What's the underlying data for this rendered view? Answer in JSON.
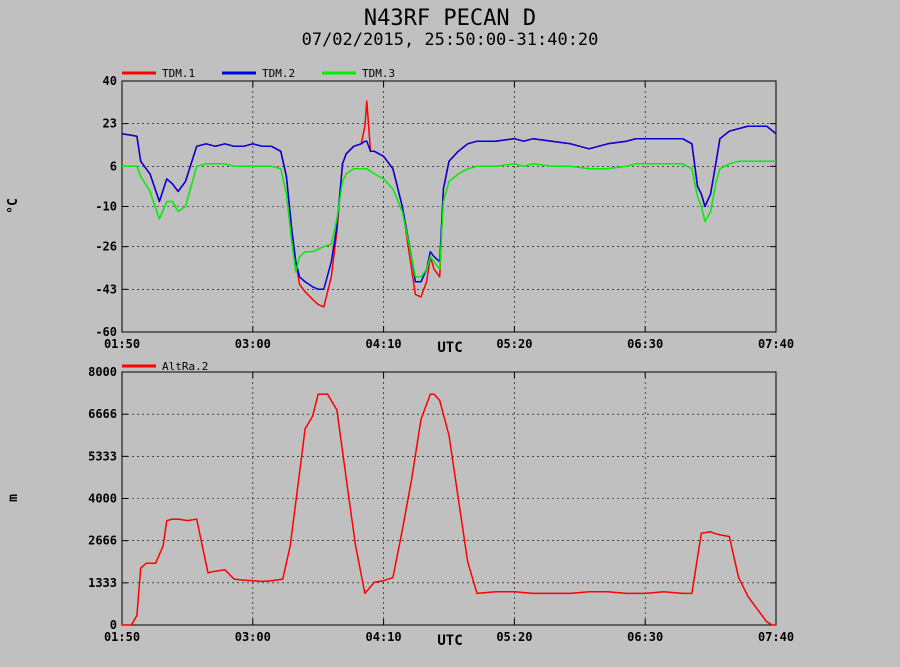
{
  "title": "N43RF PECAN D",
  "subtitle": "07/02/2015, 25:50:00-31:40:20",
  "chart_data": [
    {
      "type": "line",
      "ylabel": "°C",
      "xlabel": "UTC",
      "ylim": [
        -60,
        40
      ],
      "yticks": [
        "40",
        "23",
        "6",
        "-10",
        "-26",
        "-43",
        "-60"
      ],
      "ytick_values": [
        40,
        23,
        6,
        -10,
        -26,
        -43,
        -60
      ],
      "xlim": [
        0,
        350
      ],
      "xticks": [
        "01:50",
        "03:00",
        "04:10",
        "05:20",
        "06:30",
        "07:40"
      ],
      "xtick_values": [
        0,
        70,
        140,
        210,
        280,
        350
      ],
      "grid": true,
      "legend": "top-left",
      "series": [
        {
          "name": "TDM.1",
          "color": "#ff0000",
          "x": [
            0,
            8,
            10,
            15,
            20,
            24,
            27,
            30,
            34,
            40,
            45,
            50,
            55,
            60,
            65,
            70,
            75,
            80,
            85,
            88,
            91,
            93,
            95,
            98,
            102,
            105,
            108,
            112,
            115,
            118,
            120,
            124,
            128,
            130,
            131,
            133,
            135,
            140,
            145,
            150,
            155,
            157,
            160,
            163,
            165,
            167,
            170,
            172,
            175,
            180,
            185,
            190,
            200,
            210,
            215,
            220,
            230,
            240,
            250,
            260,
            270,
            275,
            280,
            290,
            300,
            305,
            308,
            310,
            312,
            315,
            318,
            320,
            325,
            330,
            335,
            340,
            345,
            350
          ],
          "y": [
            19,
            18,
            8,
            3,
            -8,
            1,
            -1,
            -4,
            0,
            14,
            15,
            14,
            15,
            14,
            14,
            15,
            14,
            14,
            12,
            2,
            -20,
            -32,
            -41,
            -44,
            -47,
            -49,
            -50,
            -38,
            -20,
            7,
            11,
            14,
            15,
            22,
            32,
            12,
            12,
            10,
            5,
            -10,
            -35,
            -45,
            -46,
            -40,
            -30,
            -35,
            -38,
            -3,
            8,
            12,
            15,
            16,
            16,
            17,
            16,
            17,
            16,
            15,
            13,
            15,
            16,
            17,
            17,
            17,
            17,
            15,
            -2,
            -5,
            -10,
            -5,
            8,
            17,
            20,
            21,
            22,
            22,
            22,
            19
          ]
        },
        {
          "name": "TDM.2",
          "color": "#0000dd",
          "x": [
            0,
            8,
            10,
            15,
            20,
            24,
            27,
            30,
            34,
            40,
            45,
            50,
            55,
            60,
            65,
            70,
            75,
            80,
            85,
            88,
            91,
            93,
            95,
            98,
            102,
            105,
            108,
            112,
            115,
            118,
            120,
            124,
            128,
            130,
            131,
            133,
            135,
            140,
            145,
            150,
            155,
            157,
            160,
            163,
            165,
            167,
            170,
            172,
            175,
            180,
            185,
            190,
            200,
            210,
            215,
            220,
            230,
            240,
            250,
            260,
            270,
            275,
            280,
            290,
            300,
            305,
            308,
            310,
            312,
            315,
            318,
            320,
            325,
            330,
            335,
            340,
            345,
            350
          ],
          "y": [
            19,
            18,
            8,
            3,
            -8,
            1,
            -1,
            -4,
            0,
            14,
            15,
            14,
            15,
            14,
            14,
            15,
            14,
            14,
            12,
            2,
            -20,
            -32,
            -38,
            -40,
            -42,
            -43,
            -43,
            -32,
            -18,
            7,
            11,
            14,
            15,
            16,
            16,
            12,
            12,
            10,
            5,
            -10,
            -30,
            -40,
            -40,
            -35,
            -28,
            -30,
            -32,
            -3,
            8,
            12,
            15,
            16,
            16,
            17,
            16,
            17,
            16,
            15,
            13,
            15,
            16,
            17,
            17,
            17,
            17,
            15,
            -2,
            -5,
            -10,
            -5,
            8,
            17,
            20,
            21,
            22,
            22,
            22,
            19
          ]
        },
        {
          "name": "TDM.3",
          "color": "#00ee00",
          "x": [
            0,
            8,
            10,
            15,
            20,
            24,
            27,
            30,
            34,
            40,
            45,
            50,
            55,
            60,
            65,
            70,
            75,
            80,
            85,
            88,
            91,
            93,
            95,
            98,
            102,
            105,
            108,
            112,
            115,
            118,
            120,
            124,
            128,
            130,
            131,
            133,
            135,
            140,
            145,
            150,
            155,
            157,
            160,
            163,
            165,
            167,
            170,
            172,
            175,
            180,
            185,
            190,
            200,
            210,
            215,
            220,
            230,
            240,
            250,
            260,
            270,
            275,
            280,
            290,
            300,
            305,
            308,
            310,
            312,
            315,
            318,
            320,
            325,
            330,
            335,
            340,
            345,
            350
          ],
          "y": [
            6,
            6,
            2,
            -4,
            -15,
            -8,
            -8,
            -12,
            -10,
            6,
            7,
            7,
            7,
            6,
            6,
            6,
            6,
            6,
            5,
            -5,
            -25,
            -36,
            -30,
            -28,
            -28,
            -27,
            -26,
            -25,
            -15,
            0,
            3,
            5,
            5,
            5,
            5,
            4,
            3,
            1,
            -3,
            -12,
            -30,
            -38,
            -38,
            -35,
            -30,
            -32,
            -35,
            -8,
            0,
            3,
            5,
            6,
            6,
            7,
            6,
            7,
            6,
            6,
            5,
            5,
            6,
            7,
            7,
            7,
            7,
            5,
            -6,
            -10,
            -16,
            -12,
            0,
            5,
            7,
            8,
            8,
            8,
            8,
            8
          ]
        }
      ]
    },
    {
      "type": "line",
      "ylabel": "m",
      "xlabel": "UTC",
      "ylim": [
        0,
        8000
      ],
      "yticks": [
        "8000",
        "6666",
        "5333",
        "4000",
        "2666",
        "1333",
        "0"
      ],
      "ytick_values": [
        8000,
        6666,
        5333,
        4000,
        2666,
        1333,
        0
      ],
      "xlim": [
        0,
        350
      ],
      "xticks": [
        "01:50",
        "03:00",
        "04:10",
        "05:20",
        "06:30",
        "07:40"
      ],
      "xtick_values": [
        0,
        70,
        140,
        210,
        280,
        350
      ],
      "grid": true,
      "legend": "top-left",
      "series": [
        {
          "name": "AltRa.2",
          "color": "#ff0000",
          "x": [
            0,
            5,
            8,
            10,
            13,
            18,
            22,
            24,
            27,
            30,
            35,
            40,
            43,
            46,
            50,
            55,
            60,
            65,
            70,
            75,
            80,
            86,
            90,
            95,
            98,
            102,
            105,
            110,
            115,
            118,
            121,
            125,
            130,
            135,
            140,
            145,
            150,
            155,
            160,
            165,
            167,
            170,
            175,
            180,
            185,
            190,
            200,
            210,
            220,
            230,
            240,
            250,
            260,
            270,
            280,
            290,
            300,
            305,
            310,
            315,
            317,
            320,
            325,
            330,
            335,
            340,
            345,
            348,
            350
          ],
          "y": [
            0,
            0,
            300,
            1800,
            1950,
            1950,
            2500,
            3300,
            3350,
            3350,
            3300,
            3350,
            2500,
            1650,
            1700,
            1750,
            1450,
            1420,
            1400,
            1380,
            1400,
            1450,
            2500,
            4800,
            6200,
            6600,
            7300,
            7300,
            6800,
            5500,
            4200,
            2500,
            1000,
            1350,
            1400,
            1500,
            3000,
            4600,
            6500,
            7300,
            7300,
            7100,
            6000,
            4000,
            2000,
            1000,
            1050,
            1050,
            1000,
            1000,
            1000,
            1050,
            1050,
            1000,
            1000,
            1050,
            1000,
            1000,
            2900,
            2950,
            2900,
            2850,
            2800,
            1500,
            900,
            500,
            100,
            0,
            0
          ]
        }
      ]
    }
  ]
}
